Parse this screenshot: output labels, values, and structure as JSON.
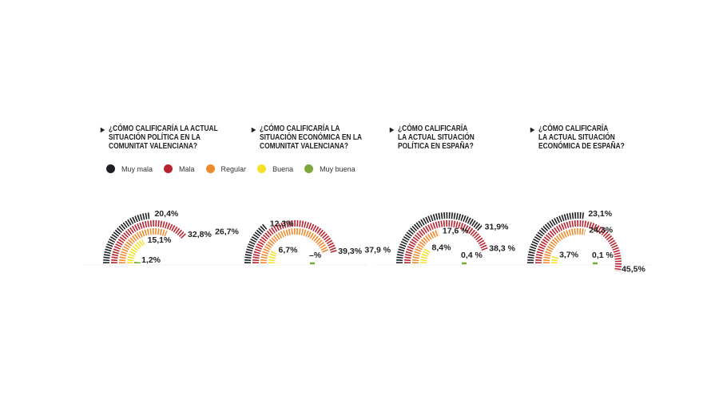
{
  "legend": [
    {
      "label": "Muy mala",
      "color": "#1f1f24"
    },
    {
      "label": "Mala",
      "color": "#b8232f"
    },
    {
      "label": "Regular",
      "color": "#ee8a2c"
    },
    {
      "label": "Buena",
      "color": "#f5e02a"
    },
    {
      "label": "Muy buena",
      "color": "#7aa83a"
    }
  ],
  "chart_data": [
    {
      "type": "radial-bar",
      "title": "¿CÓMO CALIFICARÍA LA ACTUAL\nSITUACIÓN POLÍTICA EN LA\nCOMUNITAT VALENCIANA?",
      "categories": [
        "Muy mala",
        "Mala",
        "Regular",
        "Buena",
        "Muy buena"
      ],
      "values": [
        20.4,
        32.8,
        26.7,
        15.1,
        1.2
      ],
      "labels": [
        "20,4%",
        "32,8%",
        "26,7%",
        "15,1%",
        "1,2%"
      ]
    },
    {
      "type": "radial-bar",
      "title": "¿CÓMO CALIFICARÍA LA\nSITUACIÓN ECONÓMICA EN LA\nCOMUNITAT VALENCIANA?",
      "categories": [
        "Muy mala",
        "Mala",
        "Regular",
        "Buena",
        "Muy buena"
      ],
      "values": [
        12.3,
        39.3,
        37.9,
        6.7,
        null
      ],
      "labels": [
        "12,3%",
        "39,3%",
        "37,9 %",
        "6,7%",
        "–%"
      ]
    },
    {
      "type": "radial-bar",
      "title": "¿CÓMO CALIFICARÍA\nLA ACTUAL SITUACIÓN\nPOLÍTICA EN ESPAÑA?",
      "categories": [
        "Muy mala",
        "Mala",
        "Regular",
        "Buena",
        "Muy buena"
      ],
      "values": [
        31.9,
        38.3,
        17.6,
        8.4,
        0.4
      ],
      "labels": [
        "31,9%",
        "38,3 %",
        "17,6 %",
        "8,4%",
        "0,4 %"
      ]
    },
    {
      "type": "radial-bar",
      "title": "¿CÓMO CALIFICARÍA\nLA ACTUAL SITUACIÓN\nECONÓMICA DE ESPAÑA?",
      "categories": [
        "Muy mala",
        "Mala",
        "Regular",
        "Buena",
        "Muy buena"
      ],
      "values": [
        23.1,
        45.5,
        24.3,
        3.7,
        0.1
      ],
      "labels": [
        "23,1%",
        "45,5%",
        "24,3%",
        "3,7%",
        "0,1 %"
      ]
    }
  ]
}
